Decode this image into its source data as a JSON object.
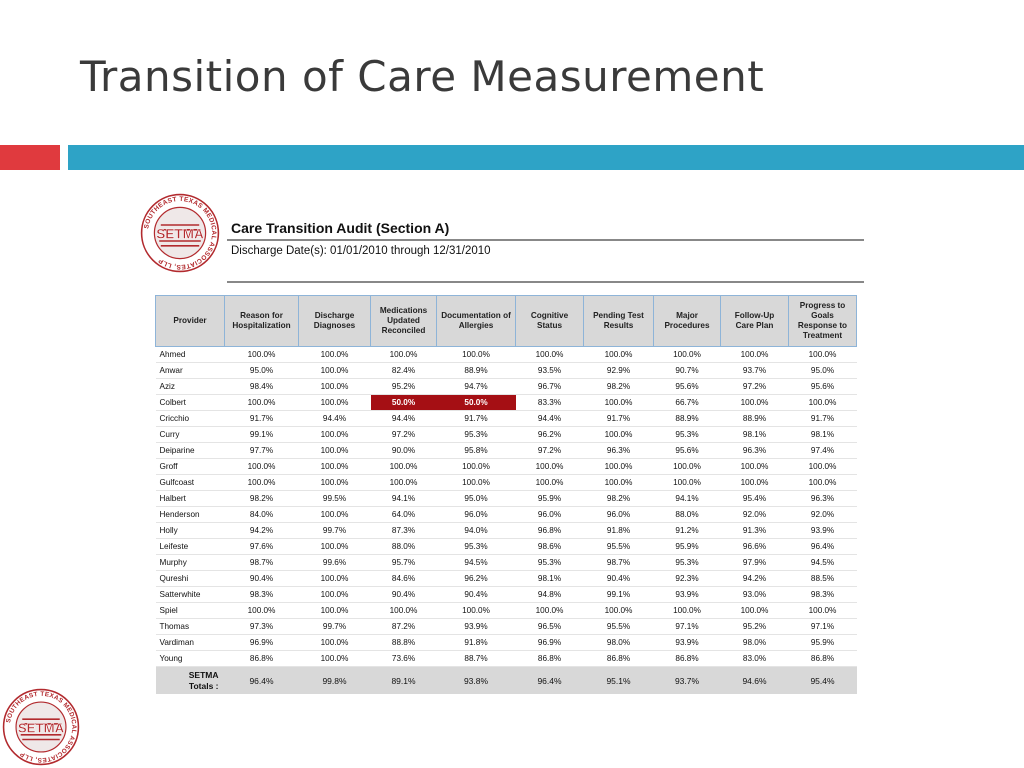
{
  "slide": {
    "title": "Transition of Care Measurement",
    "colors": {
      "accent_red": "#e03a3e",
      "accent_blue": "#2ea3c6",
      "flag_red": "#a50f14"
    }
  },
  "logo": {
    "text": "SETMA",
    "ring_text": "SOUTHEAST TEXAS MEDICAL ASSOCIATES, LLP",
    "icon": "setma-logo-icon"
  },
  "report": {
    "title": "Care Transition Audit (Section A)",
    "subtitle": "Discharge Date(s):  01/01/2010 through 12/31/2010"
  },
  "table": {
    "headers": [
      "Provider",
      "Reason for Hospitalization",
      "Discharge Diagnoses",
      "Medications Updated Reconciled",
      "Documentation of Allergies",
      "Cognitive Status",
      "Pending Test Results",
      "Major Procedures",
      "Follow-Up Care Plan",
      "Progress to Goals Response to Treatment"
    ],
    "rows": [
      [
        "Ahmed",
        "100.0%",
        "100.0%",
        "100.0%",
        "100.0%",
        "100.0%",
        "100.0%",
        "100.0%",
        "100.0%",
        "100.0%"
      ],
      [
        "Anwar",
        "95.0%",
        "100.0%",
        "82.4%",
        "88.9%",
        "93.5%",
        "92.9%",
        "90.7%",
        "93.7%",
        "95.0%"
      ],
      [
        "Aziz",
        "98.4%",
        "100.0%",
        "95.2%",
        "94.7%",
        "96.7%",
        "98.2%",
        "95.6%",
        "97.2%",
        "95.6%"
      ],
      [
        "Colbert",
        "100.0%",
        "100.0%",
        "50.0%",
        "50.0%",
        "83.3%",
        "100.0%",
        "66.7%",
        "100.0%",
        "100.0%"
      ],
      [
        "Cricchio",
        "91.7%",
        "94.4%",
        "94.4%",
        "91.7%",
        "94.4%",
        "91.7%",
        "88.9%",
        "88.9%",
        "91.7%"
      ],
      [
        "Curry",
        "99.1%",
        "100.0%",
        "97.2%",
        "95.3%",
        "96.2%",
        "100.0%",
        "95.3%",
        "98.1%",
        "98.1%"
      ],
      [
        "Deiparine",
        "97.7%",
        "100.0%",
        "90.0%",
        "95.8%",
        "97.2%",
        "96.3%",
        "95.6%",
        "96.3%",
        "97.4%"
      ],
      [
        "Groff",
        "100.0%",
        "100.0%",
        "100.0%",
        "100.0%",
        "100.0%",
        "100.0%",
        "100.0%",
        "100.0%",
        "100.0%"
      ],
      [
        "Gulfcoast",
        "100.0%",
        "100.0%",
        "100.0%",
        "100.0%",
        "100.0%",
        "100.0%",
        "100.0%",
        "100.0%",
        "100.0%"
      ],
      [
        "Halbert",
        "98.2%",
        "99.5%",
        "94.1%",
        "95.0%",
        "95.9%",
        "98.2%",
        "94.1%",
        "95.4%",
        "96.3%"
      ],
      [
        "Henderson",
        "84.0%",
        "100.0%",
        "64.0%",
        "96.0%",
        "96.0%",
        "96.0%",
        "88.0%",
        "92.0%",
        "92.0%"
      ],
      [
        "Holly",
        "94.2%",
        "99.7%",
        "87.3%",
        "94.0%",
        "96.8%",
        "91.8%",
        "91.2%",
        "91.3%",
        "93.9%"
      ],
      [
        "Leifeste",
        "97.6%",
        "100.0%",
        "88.0%",
        "95.3%",
        "98.6%",
        "95.5%",
        "95.9%",
        "96.6%",
        "96.4%"
      ],
      [
        "Murphy",
        "98.7%",
        "99.6%",
        "95.7%",
        "94.5%",
        "95.3%",
        "98.7%",
        "95.3%",
        "97.9%",
        "94.5%"
      ],
      [
        "Qureshi",
        "90.4%",
        "100.0%",
        "84.6%",
        "96.2%",
        "98.1%",
        "90.4%",
        "92.3%",
        "94.2%",
        "88.5%"
      ],
      [
        "Satterwhite",
        "98.3%",
        "100.0%",
        "90.4%",
        "90.4%",
        "94.8%",
        "99.1%",
        "93.9%",
        "93.0%",
        "98.3%"
      ],
      [
        "Spiel",
        "100.0%",
        "100.0%",
        "100.0%",
        "100.0%",
        "100.0%",
        "100.0%",
        "100.0%",
        "100.0%",
        "100.0%"
      ],
      [
        "Thomas",
        "97.3%",
        "99.7%",
        "87.2%",
        "93.9%",
        "96.5%",
        "95.5%",
        "97.1%",
        "95.2%",
        "97.1%"
      ],
      [
        "Vardiman",
        "96.9%",
        "100.0%",
        "88.8%",
        "91.8%",
        "96.9%",
        "98.0%",
        "93.9%",
        "98.0%",
        "95.9%"
      ],
      [
        "Young",
        "86.8%",
        "100.0%",
        "73.6%",
        "88.7%",
        "86.8%",
        "86.8%",
        "86.8%",
        "83.0%",
        "86.8%"
      ]
    ],
    "totals": [
      "SETMA Totals :",
      "96.4%",
      "99.8%",
      "89.1%",
      "93.8%",
      "96.4%",
      "95.1%",
      "93.7%",
      "94.6%",
      "95.4%"
    ],
    "flagged_cells": [
      [
        3,
        3
      ],
      [
        3,
        4
      ]
    ]
  }
}
